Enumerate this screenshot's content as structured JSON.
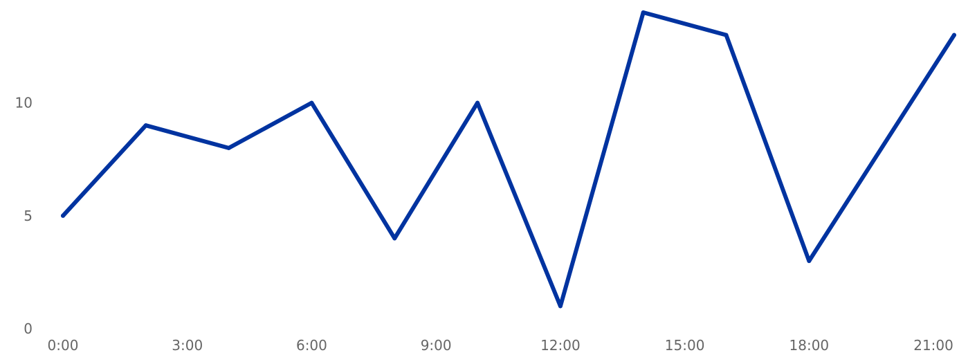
{
  "chart_data": {
    "type": "line",
    "title": "",
    "xlabel": "",
    "ylabel": "",
    "x_unit": "hour of day",
    "x": [
      0,
      2,
      4,
      6,
      8,
      10,
      12,
      14,
      16,
      18,
      21.5
    ],
    "xticks": [
      0,
      3,
      6,
      9,
      12,
      15,
      18,
      21
    ],
    "xtick_labels": [
      "0:00",
      "3:00",
      "6:00",
      "9:00",
      "12:00",
      "15:00",
      "18:00",
      "21:00"
    ],
    "yticks": [
      0,
      5,
      10
    ],
    "ytick_labels": [
      "0",
      "5",
      "10"
    ],
    "ylim": [
      0,
      14
    ],
    "xlim": [
      0,
      21.5
    ],
    "grid": false,
    "legend": "none",
    "series": [
      {
        "values": [
          5,
          9,
          8,
          10,
          4,
          10,
          1,
          14,
          13,
          3,
          13
        ],
        "color": "#0033a0"
      }
    ]
  }
}
